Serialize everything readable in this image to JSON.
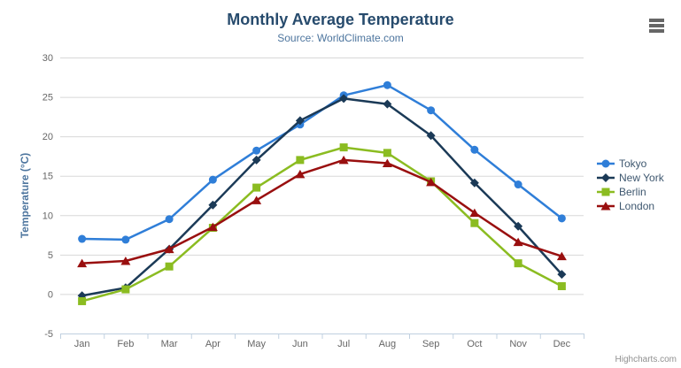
{
  "chart_data": {
    "type": "line",
    "title": "Monthly Average Temperature",
    "subtitle": "Source: WorldClimate.com",
    "xlabel": "",
    "ylabel": "Temperature (°C)",
    "categories": [
      "Jan",
      "Feb",
      "Mar",
      "Apr",
      "May",
      "Jun",
      "Jul",
      "Aug",
      "Sep",
      "Oct",
      "Nov",
      "Dec"
    ],
    "yticks": [
      -5,
      0,
      5,
      10,
      15,
      20,
      25,
      30
    ],
    "ylim": [
      -5,
      30
    ],
    "grid": true,
    "legend_position": "right",
    "series": [
      {
        "name": "Tokyo",
        "color": "#2f7ed8",
        "marker": "circle",
        "values": [
          7.0,
          6.9,
          9.5,
          14.5,
          18.2,
          21.5,
          25.2,
          26.5,
          23.3,
          18.3,
          13.9,
          9.6
        ]
      },
      {
        "name": "New York",
        "color": "#1b3a57",
        "marker": "diamond",
        "values": [
          -0.2,
          0.8,
          5.7,
          11.3,
          17.0,
          22.0,
          24.8,
          24.1,
          20.1,
          14.1,
          8.6,
          2.5
        ]
      },
      {
        "name": "Berlin",
        "color": "#8bbc21",
        "marker": "square",
        "values": [
          -0.9,
          0.6,
          3.5,
          8.4,
          13.5,
          17.0,
          18.6,
          17.9,
          14.3,
          9.0,
          3.9,
          1.0
        ]
      },
      {
        "name": "London",
        "color": "#990f0f",
        "marker": "triangle",
        "values": [
          3.9,
          4.2,
          5.7,
          8.5,
          11.9,
          15.2,
          17.0,
          16.6,
          14.2,
          10.3,
          6.6,
          4.8
        ]
      }
    ],
    "colors": {
      "gridline": "#d8d8d8",
      "axis_line": "#c0d0e0",
      "axis_label": "#666666",
      "title": "#274b6d",
      "subtitle": "#4d759e",
      "legend_text": "#3e576f"
    }
  },
  "export_menu": {
    "icon": "hamburger-icon"
  },
  "credits": {
    "label": "Highcharts.com"
  }
}
